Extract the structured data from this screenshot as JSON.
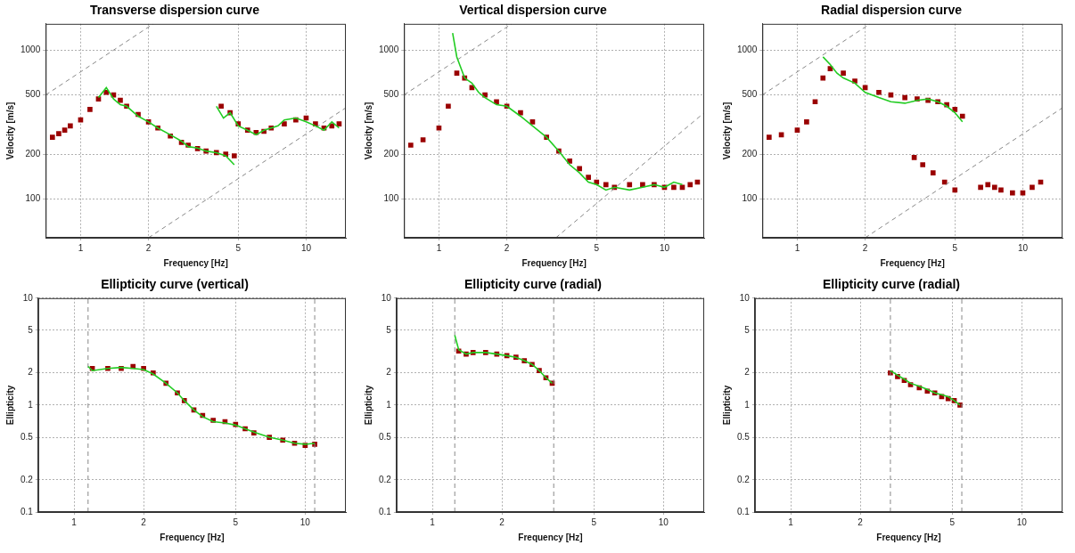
{
  "chart_data": [
    {
      "type": "line",
      "title": "Transverse dispersion curve",
      "x_label": "Frequency [Hz]",
      "y_label": "Velocity [m/s]",
      "log": true,
      "grid": true,
      "xlim": [
        0.7,
        15
      ],
      "ylim": [
        55,
        1500
      ],
      "xticks": [
        1,
        2,
        5,
        10
      ],
      "yticks": [
        100,
        200,
        500,
        1000
      ],
      "series": [
        {
          "type": "scatter",
          "color": "#9a0000",
          "marker": "square",
          "line_style": "none",
          "x": [
            0.75,
            0.8,
            0.85,
            0.9,
            1.0,
            1.1,
            1.2,
            1.3,
            1.4,
            1.5,
            1.6,
            1.8,
            2.0,
            2.2,
            2.5,
            2.8,
            3.0,
            3.3,
            3.6,
            4.0,
            4.4,
            4.8,
            4.2,
            4.6,
            5.0,
            5.5,
            6.0,
            6.5,
            7.0,
            8.0,
            9.0,
            10,
            11,
            12,
            13,
            14
          ],
          "values": [
            260,
            275,
            290,
            310,
            340,
            400,
            470,
            520,
            500,
            460,
            420,
            370,
            330,
            300,
            265,
            240,
            230,
            218,
            210,
            205,
            200,
            195,
            420,
            380,
            320,
            290,
            280,
            285,
            300,
            320,
            340,
            350,
            320,
            300,
            310,
            320
          ]
        },
        {
          "type": "line",
          "color": "#22cc22",
          "marker": "none",
          "line_style": "solid",
          "x": [
            1.2,
            1.3,
            1.4,
            1.5,
            1.6,
            1.8,
            2.0,
            2.2,
            2.5,
            2.8,
            3.0,
            3.3,
            3.6,
            4.0,
            4.4,
            4.8
          ],
          "values": [
            480,
            560,
            470,
            430,
            420,
            360,
            330,
            300,
            270,
            245,
            225,
            220,
            210,
            205,
            195,
            170
          ]
        },
        {
          "type": "line",
          "color": "#22cc22",
          "marker": "none",
          "line_style": "solid",
          "x": [
            4.0,
            4.3,
            4.6,
            5.0,
            5.5,
            6.0,
            6.5,
            7.0,
            7.5,
            8.0,
            9.0,
            10,
            11,
            12,
            13,
            14
          ],
          "values": [
            420,
            350,
            380,
            310,
            290,
            270,
            290,
            300,
            310,
            340,
            350,
            330,
            310,
            290,
            330,
            300
          ]
        },
        {
          "type": "line",
          "color": "#888888",
          "marker": "none",
          "line_style": "dashed",
          "x": [
            0.7,
            2.1
          ],
          "values": [
            500,
            1500
          ]
        },
        {
          "type": "line",
          "color": "#888888",
          "marker": "none",
          "line_style": "dashed",
          "x": [
            2,
            15
          ],
          "values": [
            55,
            410
          ]
        }
      ]
    },
    {
      "type": "line",
      "title": "Vertical dispersion curve",
      "x_label": "Frequency [Hz]",
      "y_label": "Velocity [m/s]",
      "log": true,
      "grid": true,
      "xlim": [
        0.7,
        15
      ],
      "ylim": [
        55,
        1500
      ],
      "xticks": [
        1,
        2,
        5,
        10
      ],
      "yticks": [
        100,
        200,
        500,
        1000
      ],
      "series": [
        {
          "type": "scatter",
          "color": "#9a0000",
          "marker": "square",
          "line_style": "none",
          "x": [
            0.75,
            0.85,
            1.0,
            1.1,
            1.2,
            1.3,
            1.4,
            1.6,
            1.8,
            2.0,
            2.3,
            2.6,
            3.0,
            3.4,
            3.8,
            4.2,
            4.6,
            5.0,
            5.5,
            6,
            7,
            8,
            9,
            10,
            11,
            12,
            13,
            14
          ],
          "values": [
            230,
            250,
            300,
            420,
            700,
            650,
            560,
            500,
            450,
            420,
            380,
            330,
            260,
            210,
            180,
            160,
            140,
            130,
            125,
            120,
            125,
            125,
            125,
            120,
            120,
            120,
            125,
            130
          ]
        },
        {
          "type": "line",
          "color": "#22cc22",
          "marker": "none",
          "line_style": "solid",
          "x": [
            1.15,
            1.2,
            1.3,
            1.4,
            1.5,
            1.6,
            1.8,
            2.0,
            2.3,
            2.6,
            3.0,
            3.4,
            3.8,
            4.2,
            4.6,
            5.0,
            5.5,
            6,
            7,
            8,
            9,
            10,
            11,
            12
          ],
          "values": [
            1300,
            900,
            650,
            600,
            520,
            480,
            430,
            420,
            360,
            310,
            260,
            210,
            170,
            150,
            130,
            125,
            115,
            120,
            115,
            120,
            125,
            120,
            130,
            125
          ]
        },
        {
          "type": "line",
          "color": "#888888",
          "marker": "none",
          "line_style": "dashed",
          "x": [
            0.7,
            2.1
          ],
          "values": [
            500,
            1500
          ]
        },
        {
          "type": "line",
          "color": "#888888",
          "marker": "none",
          "line_style": "dashed",
          "x": [
            3.3,
            15
          ],
          "values": [
            55,
            380
          ]
        }
      ]
    },
    {
      "type": "line",
      "title": "Radial dispersion curve",
      "x_label": "Frequency [Hz]",
      "y_label": "Velocity [m/s]",
      "log": true,
      "grid": true,
      "xlim": [
        0.7,
        15
      ],
      "ylim": [
        55,
        1500
      ],
      "xticks": [
        1,
        2,
        5,
        10
      ],
      "yticks": [
        100,
        200,
        500,
        1000
      ],
      "series": [
        {
          "type": "scatter",
          "color": "#9a0000",
          "marker": "square",
          "line_style": "none",
          "x": [
            0.75,
            0.85,
            1.0,
            1.1,
            1.2,
            1.3,
            1.4,
            1.6,
            1.8,
            2.0,
            2.3,
            2.6,
            3.0,
            3.4,
            3.8,
            4.2,
            4.6,
            5.0,
            5.4
          ],
          "values": [
            260,
            270,
            290,
            330,
            450,
            650,
            750,
            700,
            620,
            560,
            520,
            500,
            480,
            470,
            460,
            450,
            430,
            400,
            360
          ]
        },
        {
          "type": "scatter",
          "color": "#9a0000",
          "marker": "square",
          "line_style": "none",
          "x": [
            3.3,
            3.6,
            4.0,
            4.5,
            5.0,
            6.5,
            7,
            7.5,
            8,
            9,
            10,
            11,
            12
          ],
          "values": [
            190,
            170,
            150,
            130,
            115,
            120,
            125,
            120,
            115,
            110,
            110,
            120,
            130
          ]
        },
        {
          "type": "line",
          "color": "#22cc22",
          "marker": "none",
          "line_style": "solid",
          "x": [
            1.3,
            1.4,
            1.5,
            1.6,
            1.8,
            2.0,
            2.3,
            2.6,
            3.0,
            3.4,
            3.8,
            4.2,
            4.6,
            5.0,
            5.4
          ],
          "values": [
            900,
            800,
            700,
            650,
            600,
            520,
            480,
            450,
            440,
            460,
            470,
            450,
            420,
            380,
            330
          ]
        },
        {
          "type": "line",
          "color": "#888888",
          "marker": "none",
          "line_style": "dashed",
          "x": [
            0.7,
            2.1
          ],
          "values": [
            500,
            1500
          ]
        },
        {
          "type": "line",
          "color": "#888888",
          "marker": "none",
          "line_style": "dashed",
          "x": [
            2,
            15
          ],
          "values": [
            55,
            410
          ]
        }
      ]
    },
    {
      "type": "line",
      "title": "Ellipticity curve (vertical)",
      "x_label": "Frequency [Hz]",
      "y_label": "Ellipticity",
      "log": true,
      "grid": true,
      "xlim": [
        0.7,
        15
      ],
      "ylim": [
        0.1,
        10
      ],
      "xticks": [
        1,
        2,
        5,
        10
      ],
      "yticks": [
        0.1,
        0.2,
        0.5,
        1,
        2,
        5,
        10
      ],
      "series": [
        {
          "type": "scatter",
          "color": "#9a0000",
          "marker": "square",
          "line_style": "none",
          "x": [
            1.2,
            1.4,
            1.6,
            1.8,
            2,
            2.2,
            2.5,
            2.8,
            3,
            3.3,
            3.6,
            4,
            4.5,
            5,
            5.5,
            6,
            7,
            8,
            9,
            10,
            11
          ],
          "values": [
            2.2,
            2.2,
            2.2,
            2.3,
            2.2,
            2.0,
            1.6,
            1.3,
            1.1,
            0.9,
            0.8,
            0.72,
            0.7,
            0.66,
            0.6,
            0.55,
            0.5,
            0.47,
            0.44,
            0.42,
            0.43
          ]
        },
        {
          "type": "line",
          "color": "#22cc22",
          "marker": "none",
          "line_style": "solid",
          "x": [
            1.15,
            1.2,
            1.4,
            1.6,
            1.8,
            2,
            2.2,
            2.5,
            2.8,
            3,
            3.3,
            3.6,
            4,
            4.5,
            5,
            5.5,
            6,
            7,
            8,
            9,
            10,
            11
          ],
          "values": [
            2.3,
            2.1,
            2.2,
            2.25,
            2.2,
            2.15,
            1.95,
            1.6,
            1.3,
            1.1,
            0.9,
            0.78,
            0.7,
            0.68,
            0.65,
            0.6,
            0.56,
            0.5,
            0.47,
            0.44,
            0.43,
            0.44
          ]
        },
        {
          "type": "line",
          "color": "#888888",
          "marker": "none",
          "line_style": "dashed",
          "x": [
            1.15,
            1.15
          ],
          "values": [
            0.1,
            10
          ]
        },
        {
          "type": "line",
          "color": "#888888",
          "marker": "none",
          "line_style": "dashed",
          "x": [
            11,
            11
          ],
          "values": [
            0.1,
            10
          ]
        }
      ]
    },
    {
      "type": "line",
      "title": "Ellipticity curve (radial)",
      "x_label": "Frequency [Hz]",
      "y_label": "Ellipticity",
      "log": true,
      "grid": true,
      "xlim": [
        0.7,
        15
      ],
      "ylim": [
        0.1,
        10
      ],
      "xticks": [
        1,
        2,
        5,
        10
      ],
      "yticks": [
        0.1,
        0.2,
        0.5,
        1,
        2,
        5,
        10
      ],
      "series": [
        {
          "type": "scatter",
          "color": "#9a0000",
          "marker": "square",
          "line_style": "none",
          "x": [
            1.3,
            1.4,
            1.5,
            1.7,
            1.9,
            2.1,
            2.3,
            2.5,
            2.7,
            2.9,
            3.1,
            3.3
          ],
          "values": [
            3.2,
            3.0,
            3.1,
            3.1,
            3.0,
            2.9,
            2.8,
            2.6,
            2.4,
            2.1,
            1.8,
            1.6
          ]
        },
        {
          "type": "line",
          "color": "#22cc22",
          "marker": "none",
          "line_style": "solid",
          "x": [
            1.25,
            1.3,
            1.4,
            1.5,
            1.7,
            1.9,
            2.1,
            2.3,
            2.5,
            2.7,
            2.9,
            3.1,
            3.3
          ],
          "values": [
            4.5,
            3.3,
            3.0,
            3.1,
            3.1,
            3.0,
            2.9,
            2.8,
            2.6,
            2.4,
            2.1,
            1.8,
            1.6
          ]
        },
        {
          "type": "line",
          "color": "#888888",
          "marker": "none",
          "line_style": "dashed",
          "x": [
            1.25,
            1.25
          ],
          "values": [
            0.1,
            10
          ]
        },
        {
          "type": "line",
          "color": "#888888",
          "marker": "none",
          "line_style": "dashed",
          "x": [
            3.35,
            3.35
          ],
          "values": [
            0.1,
            10
          ]
        }
      ]
    },
    {
      "type": "line",
      "title": "Ellipticity curve (radial)",
      "x_label": "Frequency [Hz]",
      "y_label": "Ellipticity",
      "log": true,
      "grid": true,
      "xlim": [
        0.7,
        15
      ],
      "ylim": [
        0.1,
        10
      ],
      "xticks": [
        1,
        2,
        5,
        10
      ],
      "yticks": [
        0.1,
        0.2,
        0.5,
        1,
        2,
        5,
        10
      ],
      "series": [
        {
          "type": "scatter",
          "color": "#9a0000",
          "marker": "square",
          "line_style": "none",
          "x": [
            2.7,
            2.9,
            3.1,
            3.3,
            3.6,
            3.9,
            4.2,
            4.5,
            4.8,
            5.1,
            5.4
          ],
          "values": [
            2.0,
            1.85,
            1.7,
            1.55,
            1.45,
            1.35,
            1.3,
            1.2,
            1.15,
            1.1,
            1.0
          ]
        },
        {
          "type": "line",
          "color": "#22cc22",
          "marker": "none",
          "line_style": "solid",
          "x": [
            2.7,
            2.9,
            3.1,
            3.3,
            3.6,
            3.9,
            4.2,
            4.5,
            4.8,
            5.1,
            5.4
          ],
          "values": [
            2.1,
            1.9,
            1.75,
            1.6,
            1.5,
            1.4,
            1.3,
            1.25,
            1.2,
            1.1,
            1.0
          ]
        },
        {
          "type": "line",
          "color": "#888888",
          "marker": "none",
          "line_style": "dashed",
          "x": [
            2.7,
            2.7
          ],
          "values": [
            0.1,
            10
          ]
        },
        {
          "type": "line",
          "color": "#888888",
          "marker": "none",
          "line_style": "dashed",
          "x": [
            5.5,
            5.5
          ],
          "values": [
            0.1,
            10
          ]
        }
      ]
    }
  ]
}
